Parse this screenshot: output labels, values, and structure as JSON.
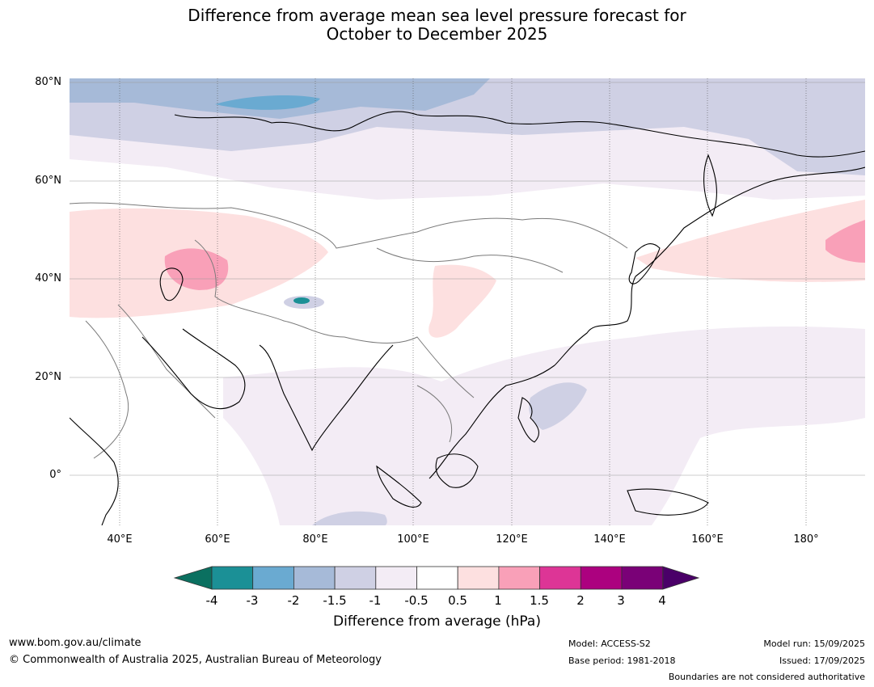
{
  "title": {
    "line1": "Difference from average mean sea level pressure forecast for",
    "line2": "October to December 2025"
  },
  "map": {
    "latitude_labels": [
      "80°N",
      "60°N",
      "40°N",
      "20°N",
      "0°"
    ],
    "longitude_labels": [
      "40°E",
      "60°E",
      "80°E",
      "100°E",
      "120°E",
      "140°E",
      "160°E",
      "180°"
    ]
  },
  "legend": {
    "label": "Difference from average (hPa)",
    "ticks": [
      "-4",
      "-3",
      "-2",
      "-1.5",
      "-1",
      "-0.5",
      "0.5",
      "1",
      "1.5",
      "2",
      "3",
      "4"
    ],
    "colors": {
      "below_min": "#0b7060",
      "lt_-3": "#1b9096",
      "-3_-2": "#6aaad1",
      "-2_-1.5": "#a6bad8",
      "-1.5_-1": "#cfd0e4",
      "-1_-0.5": "#f3ecf5",
      "-0.5_0.5": "#ffffff",
      "0.5_1": "#fde0e0",
      "1_1.5": "#f9a0b8",
      "1.5_2": "#dd3596",
      "2_3": "#ac017f",
      "3_4": "#7a0177",
      "above_max": "#4a0068"
    }
  },
  "footer": {
    "website": "www.bom.gov.au/climate",
    "copyright": "© Commonwealth of Australia 2025, Australian Bureau of Meteorology",
    "model": "Model: ACCESS-S2",
    "base_period": "Base period: 1981-2018",
    "model_run": "Model run: 15/09/2025",
    "issued": "Issued: 17/09/2025",
    "disclaimer": "Boundaries are not considered authoritative"
  }
}
